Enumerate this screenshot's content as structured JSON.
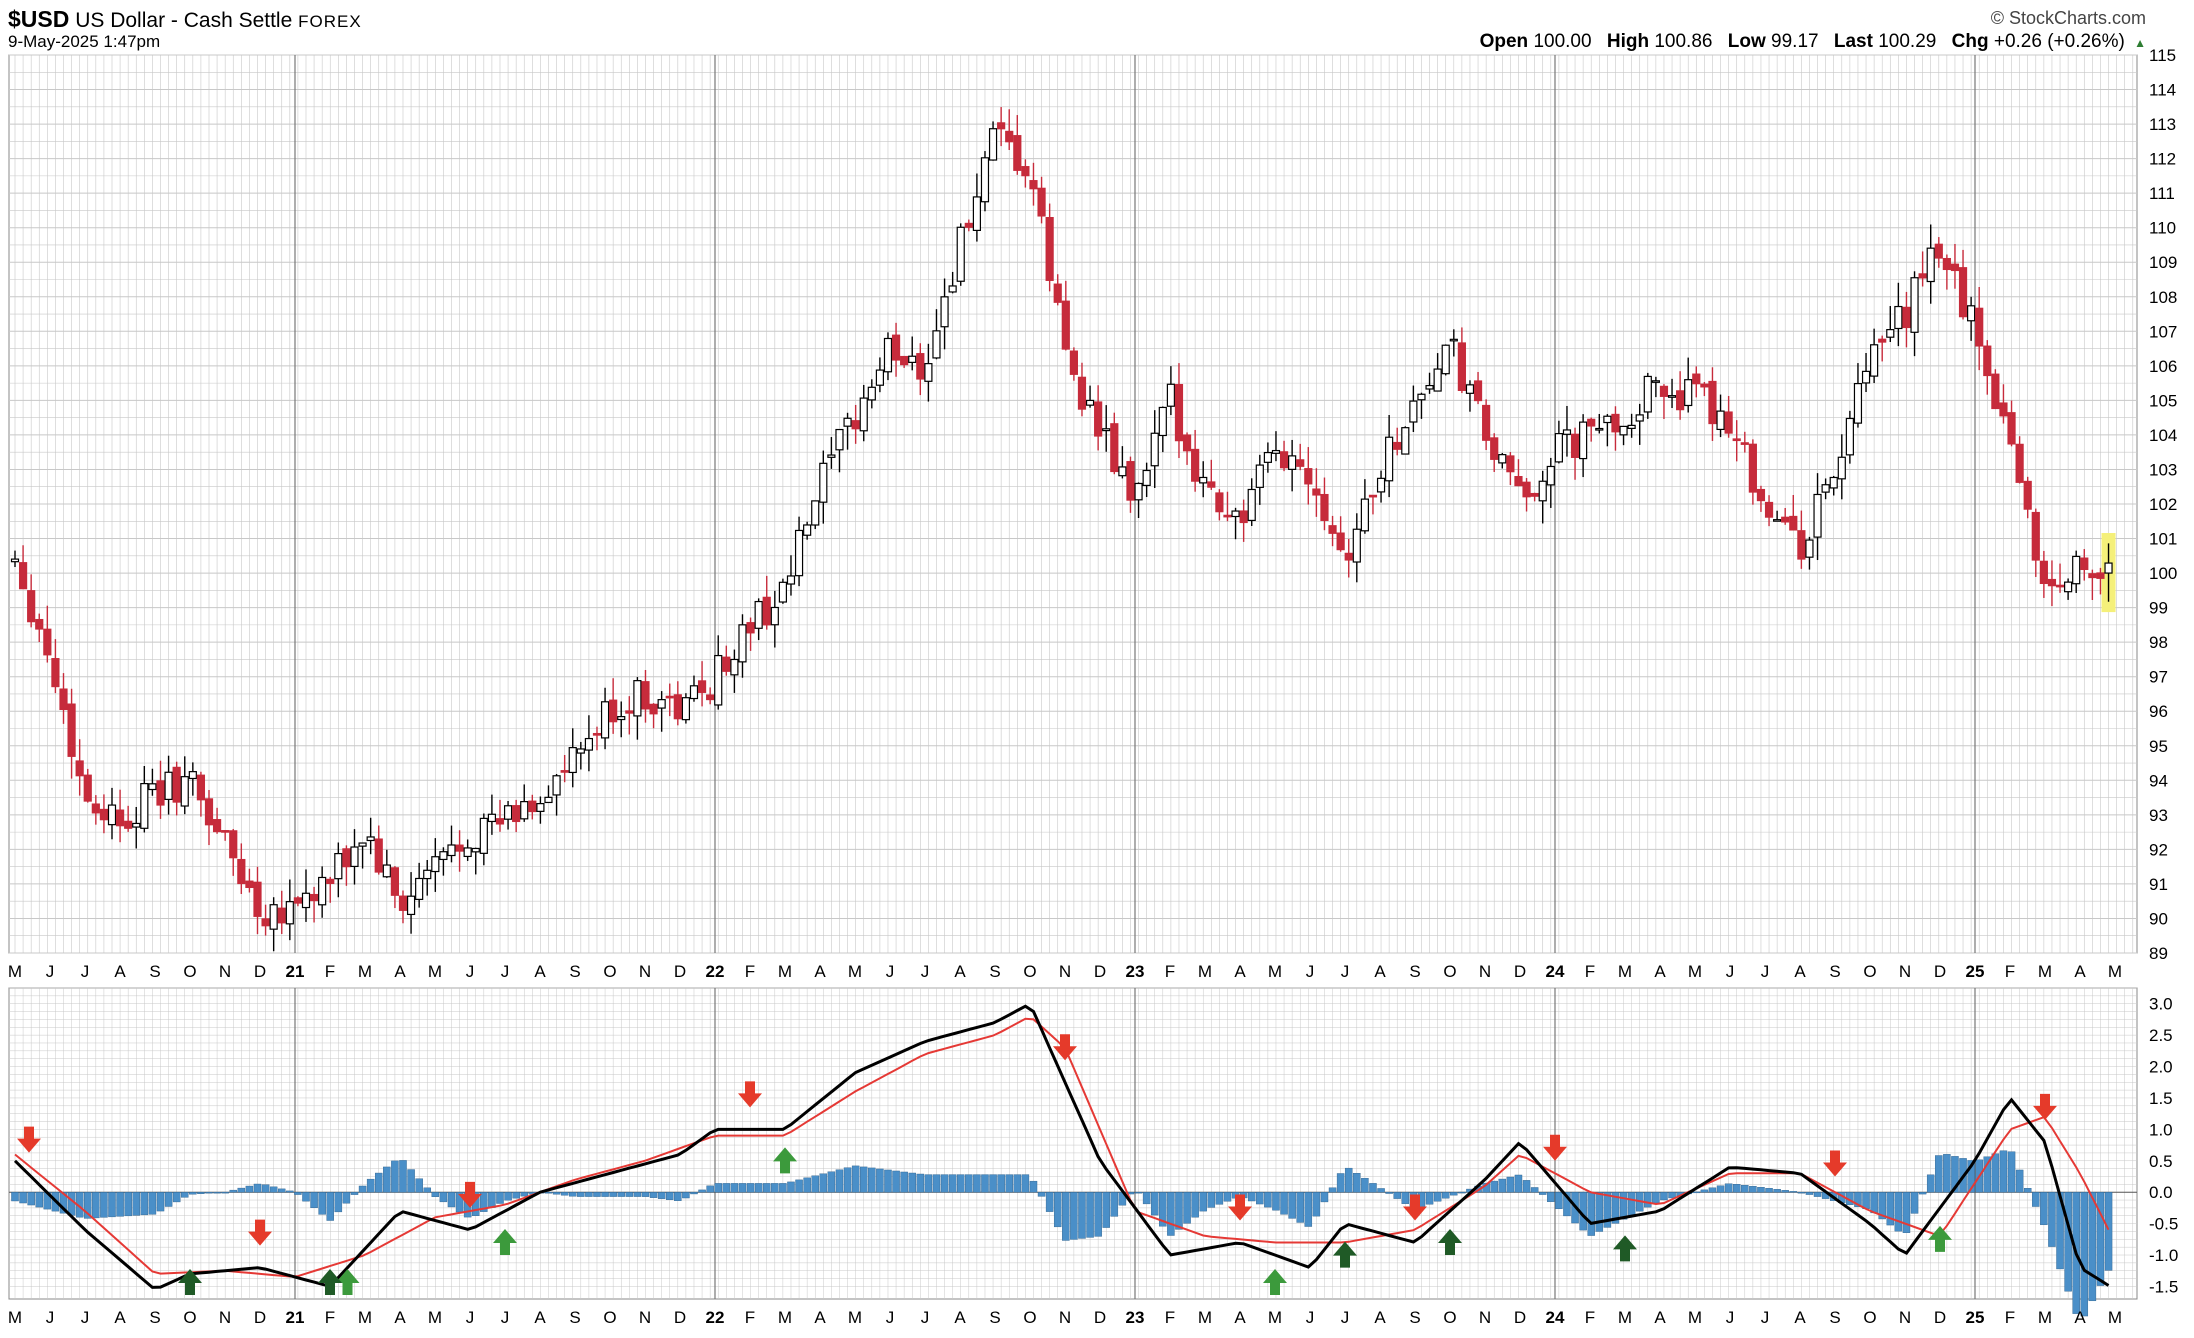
{
  "header": {
    "symbol": "$USD",
    "name": "US Dollar - Cash Settle",
    "exchange": "FOREX",
    "date": "9-May-2025 1:47pm",
    "brand": "© StockCharts.com",
    "ohlc": {
      "open_label": "Open",
      "open": "100.00",
      "high_label": "High",
      "high": "100.86",
      "low_label": "Low",
      "low": "99.17",
      "last_label": "Last",
      "last": "100.29",
      "chg_label": "Chg",
      "chg": "+0.26 (+0.26%)",
      "chg_icon": "up-triangle-icon"
    }
  },
  "colors": {
    "up": "#000000",
    "down": "#c62b3b",
    "macd": "#000000",
    "signal": "#e53935",
    "hist": "#4a8fc8",
    "sell": "#e53a2a",
    "buy": "#3c9a3c",
    "buy_dark": "#1f5a26",
    "grid": "#c8c8c8",
    "highlight": "#f5f07a"
  },
  "chart_data": [
    {
      "type": "candlestick",
      "title": "$USD US Dollar - Cash Settle FOREX (weekly)",
      "ylim": [
        89,
        115
      ],
      "yticks": [
        "89",
        "90",
        "91",
        "92",
        "93",
        "94",
        "95",
        "96",
        "97",
        "98",
        "99",
        "100",
        "101",
        "102",
        "103",
        "104",
        "105",
        "106",
        "107",
        "108",
        "109",
        "110",
        "111",
        "112",
        "113",
        "114",
        "115"
      ],
      "x_month_labels": [
        "M",
        "J",
        "J",
        "A",
        "S",
        "O",
        "N",
        "D",
        "21",
        "F",
        "M",
        "A",
        "M",
        "J",
        "J",
        "A",
        "S",
        "O",
        "N",
        "D",
        "22",
        "F",
        "M",
        "A",
        "M",
        "J",
        "J",
        "A",
        "S",
        "O",
        "N",
        "D",
        "23",
        "F",
        "M",
        "A",
        "M",
        "J",
        "J",
        "A",
        "S",
        "O",
        "N",
        "D",
        "24",
        "F",
        "M",
        "A",
        "M",
        "J",
        "J",
        "A",
        "S",
        "O",
        "N",
        "D",
        "25",
        "F",
        "M",
        "A",
        "M"
      ],
      "year_labels": [
        "21",
        "22",
        "23",
        "24",
        "25"
      ],
      "key_closes": [
        {
          "month": 0,
          "close": 100.5
        },
        {
          "month": 1,
          "close": 97.5
        },
        {
          "month": 2,
          "close": 93.5
        },
        {
          "month": 3,
          "close": 92.9
        },
        {
          "month": 4,
          "close": 93.6
        },
        {
          "month": 5,
          "close": 94.0
        },
        {
          "month": 6,
          "close": 92.2
        },
        {
          "month": 7,
          "close": 90.2
        },
        {
          "month": 8,
          "close": 90.5
        },
        {
          "month": 9,
          "close": 91.0
        },
        {
          "month": 10,
          "close": 92.5
        },
        {
          "month": 11,
          "close": 90.2
        },
        {
          "month": 12,
          "close": 91.5
        },
        {
          "month": 13,
          "close": 92.5
        },
        {
          "month": 14,
          "close": 92.8
        },
        {
          "month": 15,
          "close": 93.5
        },
        {
          "month": 16,
          "close": 94.5
        },
        {
          "month": 17,
          "close": 96.0
        },
        {
          "month": 18,
          "close": 96.5
        },
        {
          "month": 19,
          "close": 96.0
        },
        {
          "month": 20,
          "close": 97.0
        },
        {
          "month": 21,
          "close": 98.5
        },
        {
          "month": 22,
          "close": 99.5
        },
        {
          "month": 23,
          "close": 102.5
        },
        {
          "month": 24,
          "close": 104.5
        },
        {
          "month": 25,
          "close": 106.5
        },
        {
          "month": 26,
          "close": 106.0
        },
        {
          "month": 27,
          "close": 109.5
        },
        {
          "month": 28,
          "close": 112.5
        },
        {
          "month": 29,
          "close": 111.5
        },
        {
          "month": 30,
          "close": 106.5
        },
        {
          "month": 31,
          "close": 104.0
        },
        {
          "month": 32,
          "close": 102.0
        },
        {
          "month": 33,
          "close": 105.0
        },
        {
          "month": 34,
          "close": 102.5
        },
        {
          "month": 35,
          "close": 101.5
        },
        {
          "month": 36,
          "close": 103.5
        },
        {
          "month": 37,
          "close": 103.0
        },
        {
          "month": 38,
          "close": 100.5
        },
        {
          "month": 39,
          "close": 103.0
        },
        {
          "month": 40,
          "close": 105.0
        },
        {
          "month": 41,
          "close": 106.5
        },
        {
          "month": 42,
          "close": 104.0
        },
        {
          "month": 43,
          "close": 102.0
        },
        {
          "month": 44,
          "close": 103.5
        },
        {
          "month": 45,
          "close": 104.0
        },
        {
          "month": 46,
          "close": 104.5
        },
        {
          "month": 47,
          "close": 105.5
        },
        {
          "month": 48,
          "close": 105.0
        },
        {
          "month": 49,
          "close": 104.5
        },
        {
          "month": 50,
          "close": 102.0
        },
        {
          "month": 51,
          "close": 100.7
        },
        {
          "month": 52,
          "close": 103.0
        },
        {
          "month": 53,
          "close": 106.0
        },
        {
          "month": 54,
          "close": 107.5
        },
        {
          "month": 55,
          "close": 109.5
        },
        {
          "month": 56,
          "close": 107.0
        },
        {
          "month": 57,
          "close": 104.0
        },
        {
          "month": 58,
          "close": 99.5
        },
        {
          "month": 59,
          "close": 100.29
        }
      ],
      "last_bar": {
        "open": 100.0,
        "high": 100.86,
        "low": 99.17,
        "close": 100.29
      }
    },
    {
      "type": "line",
      "title": "MACD",
      "ylim": [
        -1.7,
        3.25
      ],
      "yticks": [
        "3.0",
        "2.5",
        "2.0",
        "1.5",
        "1.0",
        "0.5",
        "0.0",
        "-0.5",
        "-1.0",
        "-1.5"
      ],
      "macd_keys": [
        {
          "month": 0,
          "value": 0.5
        },
        {
          "month": 2,
          "value": -0.6
        },
        {
          "month": 4,
          "value": -1.55
        },
        {
          "month": 5,
          "value": -1.3
        },
        {
          "month": 7,
          "value": -1.2
        },
        {
          "month": 9,
          "value": -1.5
        },
        {
          "month": 11,
          "value": -0.3
        },
        {
          "month": 13,
          "value": -0.6
        },
        {
          "month": 15,
          "value": 0.0
        },
        {
          "month": 17,
          "value": 0.3
        },
        {
          "month": 19,
          "value": 0.6
        },
        {
          "month": 20,
          "value": 1.0
        },
        {
          "month": 22,
          "value": 1.0
        },
        {
          "month": 24,
          "value": 1.9
        },
        {
          "month": 26,
          "value": 2.4
        },
        {
          "month": 28,
          "value": 2.7
        },
        {
          "month": 29,
          "value": 3.0
        },
        {
          "month": 31,
          "value": 0.5
        },
        {
          "month": 33,
          "value": -1.0
        },
        {
          "month": 35,
          "value": -0.8
        },
        {
          "month": 37,
          "value": -1.2
        },
        {
          "month": 38,
          "value": -0.5
        },
        {
          "month": 40,
          "value": -0.8
        },
        {
          "month": 42,
          "value": 0.2
        },
        {
          "month": 43,
          "value": 0.8
        },
        {
          "month": 45,
          "value": -0.5
        },
        {
          "month": 47,
          "value": -0.3
        },
        {
          "month": 49,
          "value": 0.4
        },
        {
          "month": 51,
          "value": 0.3
        },
        {
          "month": 53,
          "value": -0.5
        },
        {
          "month": 54,
          "value": -1.0
        },
        {
          "month": 56,
          "value": 0.5
        },
        {
          "month": 57,
          "value": 1.5
        },
        {
          "month": 58,
          "value": 0.8
        },
        {
          "month": 59,
          "value": -1.2
        },
        {
          "month": 60,
          "value": -1.55
        }
      ],
      "signal_keys": [
        {
          "month": 0,
          "value": 0.6
        },
        {
          "month": 2,
          "value": -0.3
        },
        {
          "month": 4,
          "value": -1.3
        },
        {
          "month": 6,
          "value": -1.25
        },
        {
          "month": 8,
          "value": -1.35
        },
        {
          "month": 10,
          "value": -1.0
        },
        {
          "month": 12,
          "value": -0.4
        },
        {
          "month": 14,
          "value": -0.2
        },
        {
          "month": 16,
          "value": 0.2
        },
        {
          "month": 18,
          "value": 0.5
        },
        {
          "month": 20,
          "value": 0.9
        },
        {
          "month": 22,
          "value": 0.9
        },
        {
          "month": 24,
          "value": 1.6
        },
        {
          "month": 26,
          "value": 2.2
        },
        {
          "month": 28,
          "value": 2.5
        },
        {
          "month": 29,
          "value": 2.8
        },
        {
          "month": 30,
          "value": 2.3
        },
        {
          "month": 32,
          "value": -0.3
        },
        {
          "month": 34,
          "value": -0.7
        },
        {
          "month": 36,
          "value": -0.8
        },
        {
          "month": 38,
          "value": -0.8
        },
        {
          "month": 40,
          "value": -0.6
        },
        {
          "month": 42,
          "value": 0.1
        },
        {
          "month": 43,
          "value": 0.6
        },
        {
          "month": 45,
          "value": 0.0
        },
        {
          "month": 47,
          "value": -0.2
        },
        {
          "month": 49,
          "value": 0.3
        },
        {
          "month": 51,
          "value": 0.3
        },
        {
          "month": 53,
          "value": -0.3
        },
        {
          "month": 55,
          "value": -0.7
        },
        {
          "month": 57,
          "value": 1.0
        },
        {
          "month": 58,
          "value": 1.2
        },
        {
          "month": 59,
          "value": 0.3
        },
        {
          "month": 60,
          "value": -0.8
        }
      ],
      "sell_signals_month": [
        0.4,
        7,
        13,
        21,
        30,
        35,
        40,
        44,
        52,
        58
      ],
      "buy_signals_month": [
        9.5,
        14,
        22,
        36,
        55
      ],
      "buy_dark_signals_month": [
        5,
        9,
        38,
        41,
        46
      ]
    }
  ]
}
